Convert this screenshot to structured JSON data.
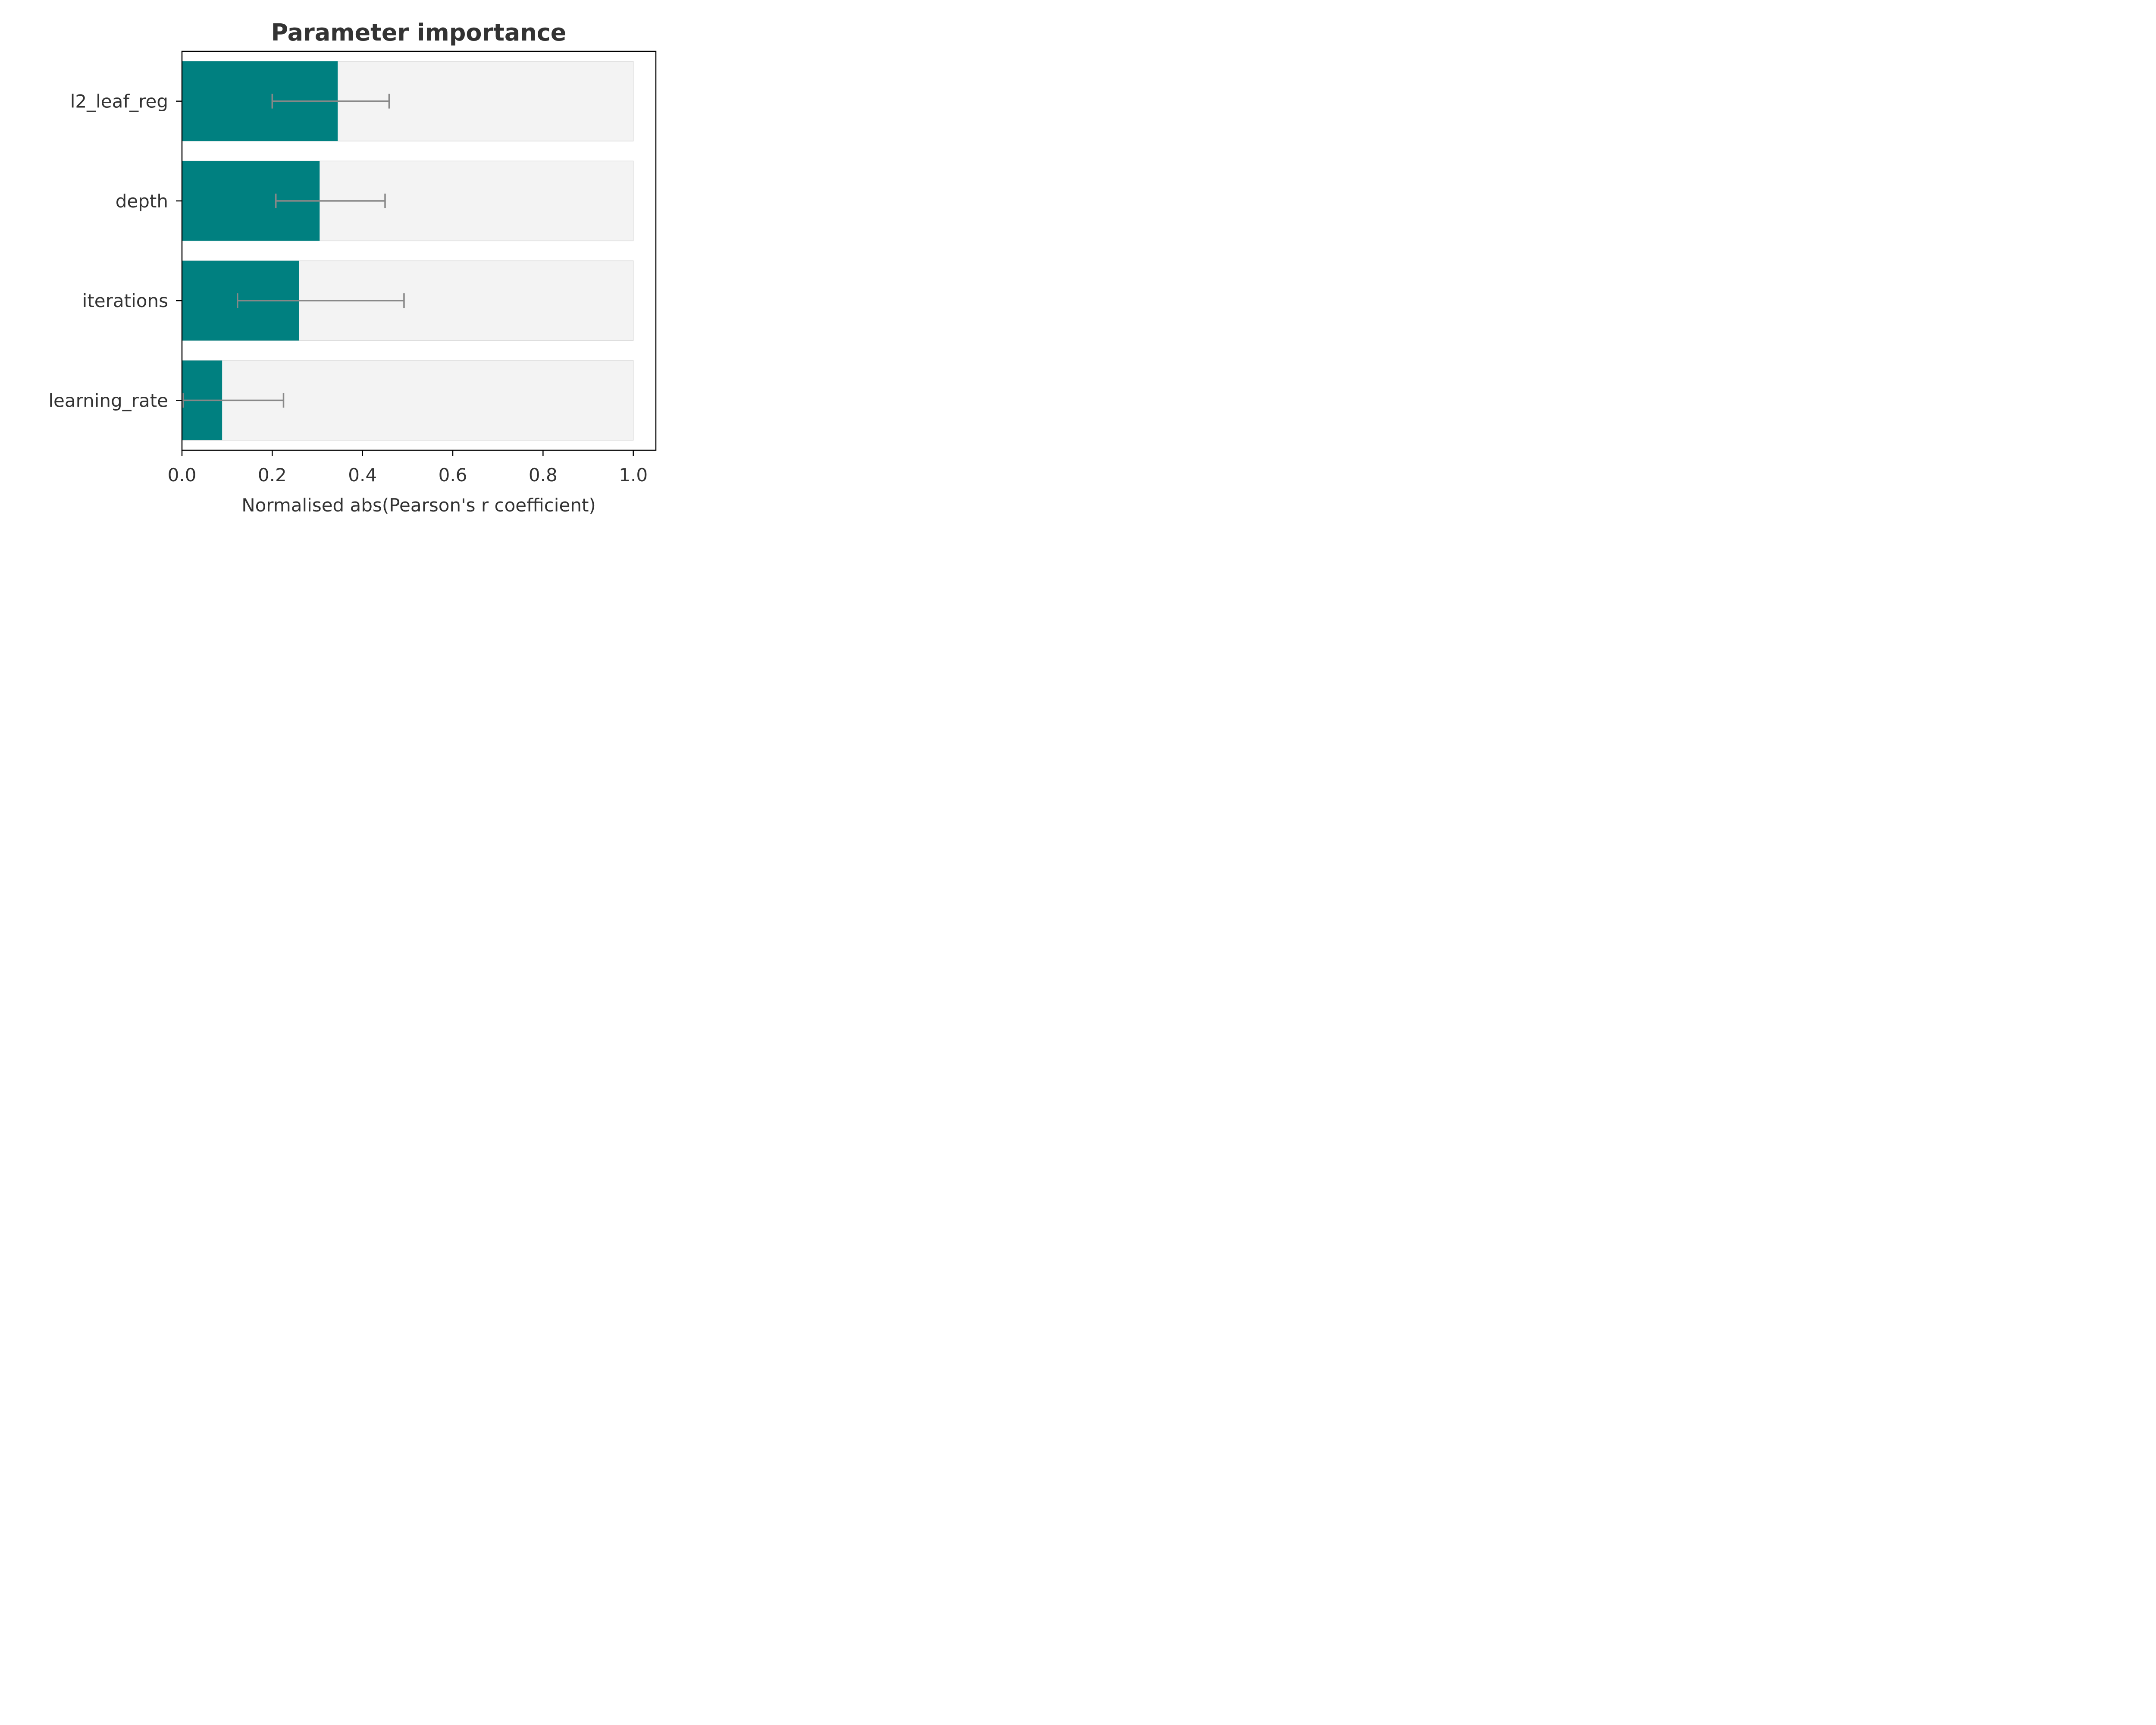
{
  "chart_data": {
    "type": "bar",
    "orientation": "horizontal",
    "title": "Parameter importance",
    "xlabel": "Normalised abs(Pearson's r coefficient)",
    "ylabel": "",
    "xlim": [
      0,
      1.05
    ],
    "xticks": [
      0.0,
      0.2,
      0.4,
      0.6,
      0.8,
      1.0
    ],
    "xtick_labels": [
      "0.0",
      "0.2",
      "0.4",
      "0.6",
      "0.8",
      "1.0"
    ],
    "categories": [
      "l2_leaf_reg",
      "depth",
      "iterations",
      "learning_rate"
    ],
    "values": [
      0.345,
      0.305,
      0.259,
      0.089
    ],
    "error_low": [
      0.2,
      0.208,
      0.123,
      0.003
    ],
    "error_high": [
      0.459,
      0.45,
      0.492,
      0.225
    ],
    "background_bar_value": 1.0,
    "grid": false,
    "legend": "none",
    "colors": {
      "bar": "#008080",
      "background_bar": "#f3f3f3",
      "background_bar_edge": "#dddddd",
      "error_bar": "#888888",
      "text": "#333333",
      "axis": "#000000"
    }
  }
}
